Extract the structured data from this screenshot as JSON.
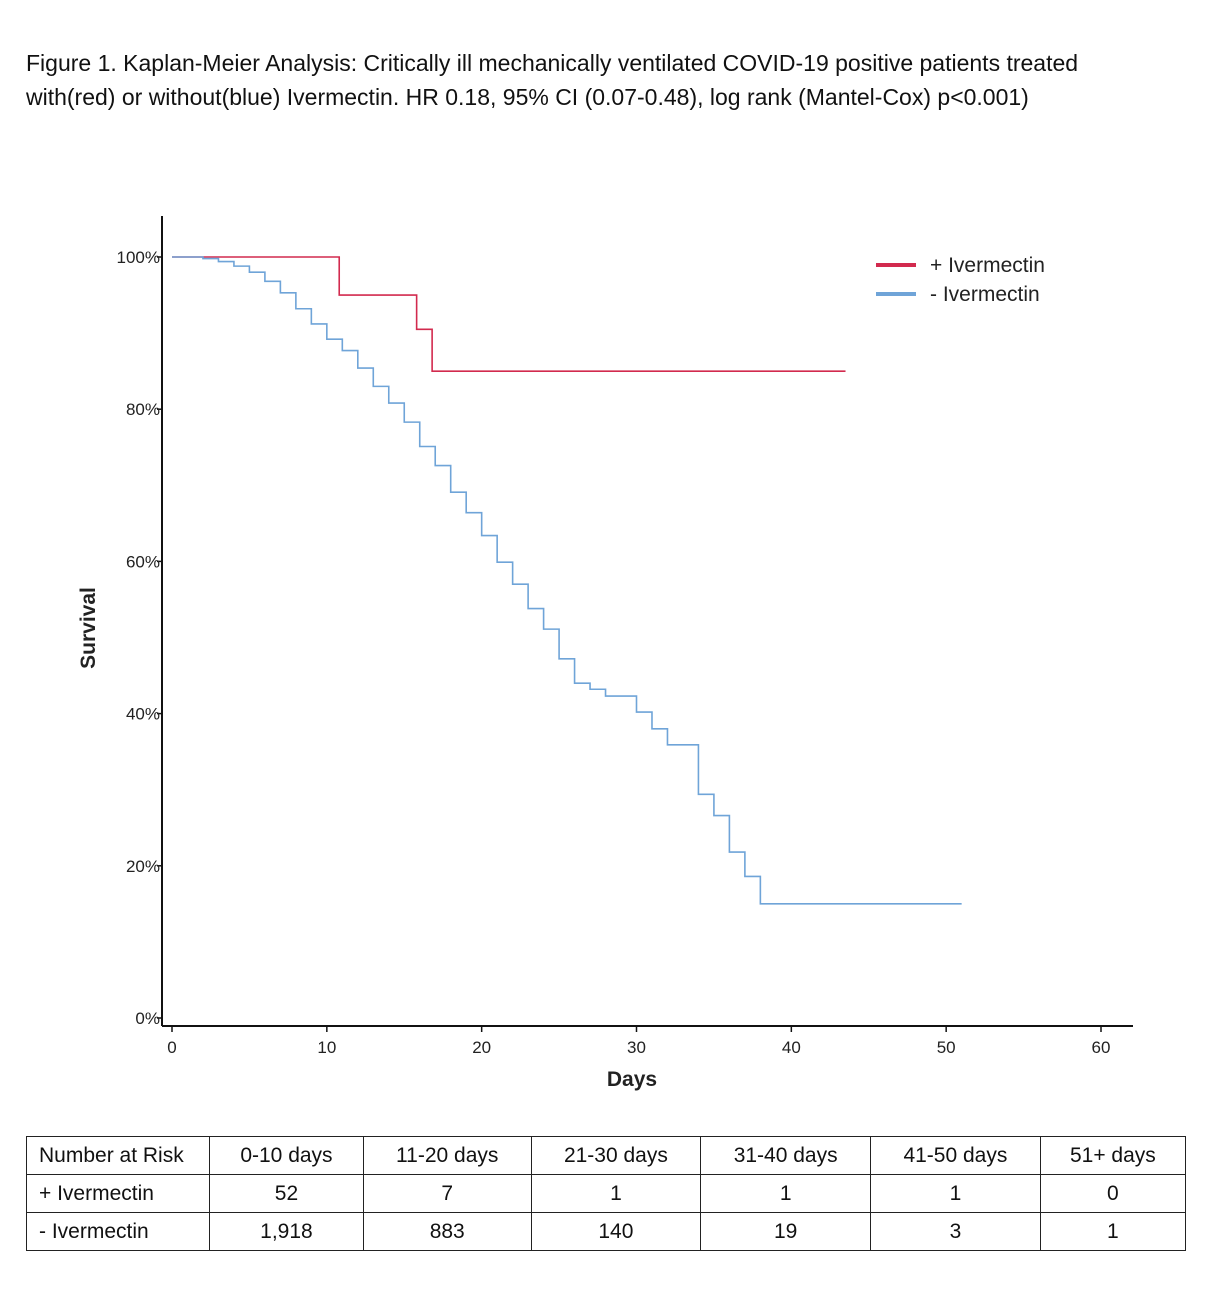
{
  "caption": {
    "line1": "Figure 1. Kaplan-Meier Analysis: Critically ill mechanically ventilated COVID-19 positive patients treated",
    "line2": "with(red) or without(blue) Ivermectin. HR 0.18, 95% CI (0.07-0.48), log rank (Mantel-Cox) p<0.001)"
  },
  "chart_data": {
    "type": "line",
    "step": true,
    "xlabel": "Days",
    "ylabel": "Survival",
    "xlim": [
      0,
      60
    ],
    "ylim": [
      0,
      100
    ],
    "xticks": [
      0,
      10,
      20,
      30,
      40,
      50,
      60
    ],
    "yticks": [
      0,
      20,
      40,
      60,
      80,
      100
    ],
    "ytick_labels": [
      "0%",
      "20%",
      "40%",
      "60%",
      "80%",
      "100%"
    ],
    "legend_position": "top-right",
    "grid": false,
    "series": [
      {
        "name": "+ Ivermectin",
        "color": "#d22a4e",
        "x": [
          0,
          10.8,
          15.8,
          16.8,
          43.5
        ],
        "y": [
          100,
          95,
          90.5,
          85,
          85
        ]
      },
      {
        "name": "- Ivermectin",
        "color": "#6fa4d8",
        "x": [
          0,
          2,
          3,
          4,
          5,
          6,
          7,
          8,
          9,
          10,
          11,
          12,
          13,
          14,
          15,
          16,
          17,
          18,
          19,
          20,
          21,
          22,
          23,
          24,
          25,
          26,
          27,
          28,
          30,
          31,
          32,
          34,
          35,
          36,
          37,
          38,
          51
        ],
        "y": [
          100,
          99.8,
          99.4,
          98.8,
          98,
          96.8,
          95.3,
          93.2,
          91.2,
          89.2,
          87.7,
          85.4,
          83,
          80.8,
          78.3,
          75.1,
          72.6,
          69.1,
          66.4,
          63.4,
          59.9,
          57,
          53.8,
          51.1,
          47.2,
          44,
          43.2,
          42.3,
          40.2,
          38,
          35.9,
          29.4,
          26.6,
          21.8,
          18.6,
          15,
          15
        ]
      }
    ]
  },
  "risk_table": {
    "header": [
      "Number at Risk",
      "0-10 days",
      "11-20 days",
      "21-30 days",
      "31-40 days",
      "41-50 days",
      "51+ days"
    ],
    "rows": [
      {
        "label": "+ Ivermectin",
        "values": [
          "52",
          "7",
          "1",
          "1",
          "1",
          "0"
        ]
      },
      {
        "label": "- Ivermectin",
        "values": [
          "1,918",
          "883",
          "140",
          "19",
          "3",
          "1"
        ]
      }
    ]
  }
}
